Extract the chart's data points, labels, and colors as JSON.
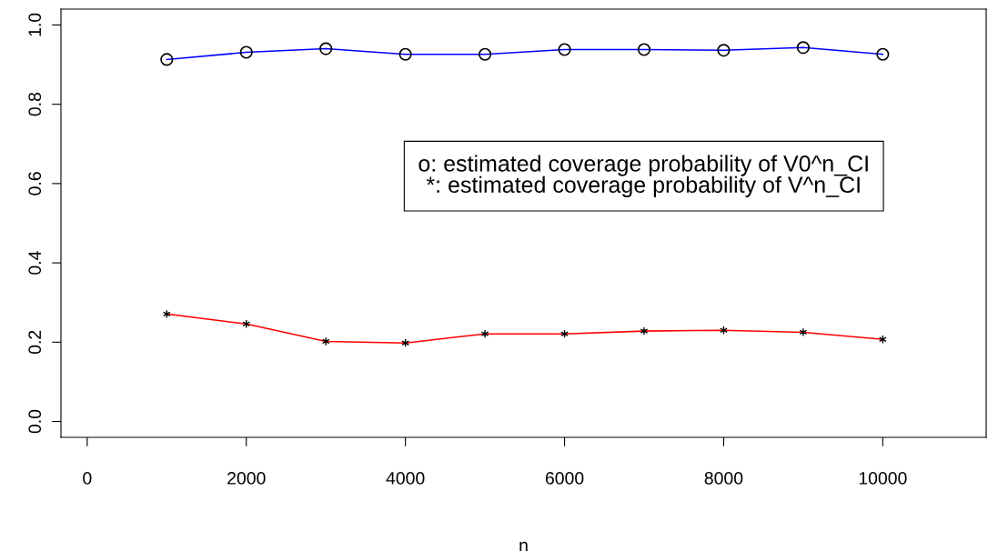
{
  "chart_data": {
    "type": "line",
    "xlabel": "n",
    "x": [
      1000,
      2000,
      3000,
      4000,
      5000,
      6000,
      7000,
      8000,
      9000,
      10000
    ],
    "series": [
      {
        "color": "#0000ff",
        "marker": "circle",
        "values": [
          0.913,
          0.931,
          0.94,
          0.926,
          0.926,
          0.938,
          0.938,
          0.936,
          0.943,
          0.926
        ]
      },
      {
        "color": "#ff0000",
        "marker": "cross",
        "values": [
          0.271,
          0.246,
          0.202,
          0.198,
          0.221,
          0.221,
          0.228,
          0.23,
          0.225,
          0.207
        ]
      }
    ],
    "xlim": [
      -330,
      11300
    ],
    "ylim": [
      -0.04,
      1.04
    ],
    "xticks": [
      0,
      2000,
      4000,
      6000,
      8000,
      10000
    ],
    "yticks": [
      {
        "value": 0,
        "label": "0.0"
      },
      {
        "value": 0.2,
        "label": "0.2"
      },
      {
        "value": 0.4,
        "label": "0.4"
      },
      {
        "value": 0.6,
        "label": "0.6"
      },
      {
        "value": 0.8,
        "label": "0.8"
      },
      {
        "value": 1.0,
        "label": "1.0"
      }
    ],
    "annotations": [
      "o: estimated coverage probability of V0^n_CI\n*: estimated coverage probability of V^n_CI"
    ],
    "grid": false
  }
}
